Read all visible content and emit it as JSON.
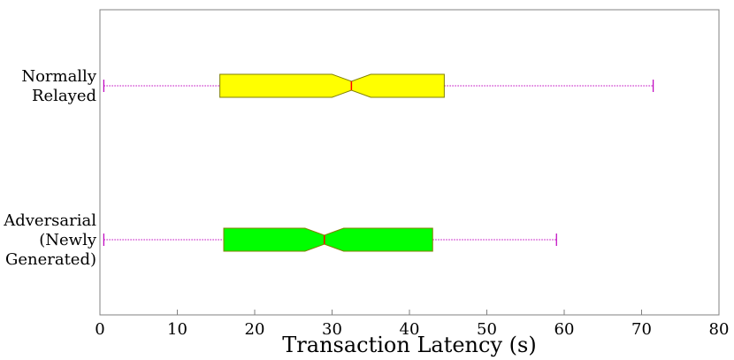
{
  "chart_data": {
    "type": "boxplot",
    "orientation": "horizontal",
    "notched": true,
    "xlabel": "Transaction Latency (s)",
    "ylabel": "",
    "title": "",
    "xlim": [
      0,
      80
    ],
    "xticks": [
      0,
      10,
      20,
      30,
      40,
      50,
      60,
      70,
      80
    ],
    "grid": false,
    "series": [
      {
        "label_lines": [
          "Normally",
          "Relayed"
        ],
        "whisker_low": 0.5,
        "q1": 15.5,
        "notch_low": 30.0,
        "median": 32.5,
        "notch_high": 35.0,
        "q3": 44.5,
        "whisker_high": 71.5,
        "color": "#ffff00"
      },
      {
        "label_lines": [
          "Adversarial",
          "(Newly",
          "Generated)"
        ],
        "whisker_low": 0.5,
        "q1": 16.0,
        "notch_low": 26.5,
        "median": 29.0,
        "notch_high": 31.5,
        "q3": 43.0,
        "whisker_high": 59.0,
        "color": "#00ff00"
      }
    ],
    "whisker_color": "#bf00bf",
    "median_color": "#ff0000",
    "box_edge_color": "#808000"
  }
}
